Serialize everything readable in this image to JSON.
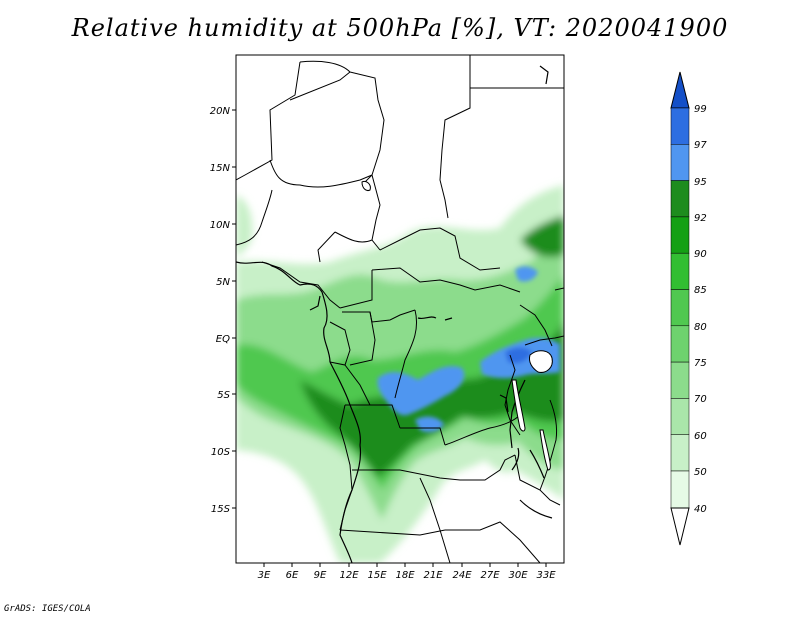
{
  "title": "Relative humidity at 500hPa [%], VT: 2020041900",
  "credit": "GrADS: IGES/COLA",
  "map": {
    "lat_labels": [
      "20N",
      "15N",
      "10N",
      "5N",
      "EQ",
      "5S",
      "10S",
      "15S"
    ],
    "lon_labels": [
      "3E",
      "6E",
      "9E",
      "12E",
      "15E",
      "18E",
      "21E",
      "24E",
      "27E",
      "30E",
      "33E"
    ]
  },
  "colorbar": {
    "levels": [
      "40",
      "50",
      "60",
      "70",
      "75",
      "80",
      "85",
      "90",
      "92",
      "95",
      "97",
      "99"
    ],
    "colors": [
      "#ffffff",
      "#e6fae6",
      "#c8f0c8",
      "#aae6aa",
      "#8cdc8c",
      "#6ed26e",
      "#50c850",
      "#32be32",
      "#14a014",
      "#1e8c1e",
      "#5096f0",
      "#2d6ee1",
      "#1450c8"
    ]
  }
}
